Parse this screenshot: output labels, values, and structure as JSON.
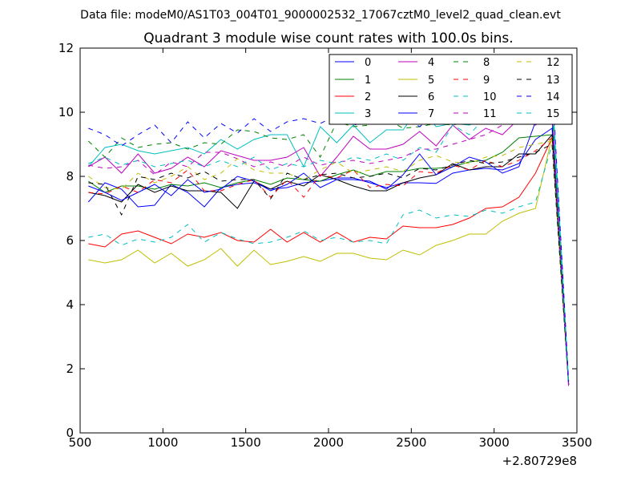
{
  "chart_data": {
    "type": "line",
    "suptitle": "Data file: modeM0/AS1T03_004T01_9000002532_17067cztM0_level2_quad_clean.evt",
    "title": "Quadrant 3 module wise count rates with 100.0s bins.",
    "xlabel": "",
    "ylabel": "",
    "x_offset_label": "+2.80729e8",
    "xlim": [
      500,
      3500
    ],
    "ylim": [
      0,
      12
    ],
    "xticks": [
      500,
      1000,
      1500,
      2000,
      2500,
      3000,
      3500
    ],
    "yticks": [
      0,
      2,
      4,
      6,
      8,
      10,
      12
    ],
    "grid": false,
    "legend_position": "top-right",
    "x": [
      550,
      650,
      750,
      850,
      950,
      1050,
      1150,
      1250,
      1350,
      1450,
      1550,
      1650,
      1750,
      1850,
      1950,
      2050,
      2150,
      2250,
      2350,
      2450,
      2550,
      2650,
      2750,
      2850,
      2950,
      3050,
      3150,
      3250,
      3350,
      3450
    ],
    "series": [
      {
        "name": "0",
        "color": "#0000ff",
        "dash": "solid",
        "values": [
          7.2,
          7.8,
          7.6,
          7.05,
          7.1,
          7.75,
          7.5,
          7.05,
          7.65,
          7.75,
          7.8,
          7.6,
          7.65,
          7.8,
          7.85,
          7.95,
          7.95,
          7.8,
          7.65,
          7.8,
          7.8,
          7.78,
          8.1,
          8.2,
          8.25,
          8.2,
          8.4,
          9.15,
          9.5,
          1.5
        ]
      },
      {
        "name": "1",
        "color": "#008000",
        "dash": "solid",
        "values": [
          7.85,
          7.5,
          7.7,
          7.7,
          7.6,
          7.75,
          7.7,
          7.8,
          7.65,
          7.8,
          7.9,
          7.75,
          7.95,
          7.9,
          7.85,
          8.05,
          8.2,
          8.0,
          8.15,
          8.15,
          8.25,
          8.25,
          8.3,
          8.45,
          8.5,
          8.75,
          9.2,
          9.25,
          9.3,
          1.5
        ]
      },
      {
        "name": "2",
        "color": "#ff0000",
        "dash": "solid",
        "values": [
          5.9,
          5.8,
          6.2,
          6.3,
          6.1,
          5.9,
          6.2,
          6.1,
          6.25,
          6.0,
          5.95,
          6.35,
          5.95,
          6.25,
          5.95,
          6.25,
          5.95,
          6.1,
          6.05,
          6.45,
          6.4,
          6.4,
          6.5,
          6.7,
          7.0,
          7.05,
          7.35,
          8.1,
          9.2,
          1.5
        ]
      },
      {
        "name": "3",
        "color": "#00bfbf",
        "dash": "solid",
        "values": [
          8.3,
          8.9,
          9.0,
          8.8,
          8.7,
          8.8,
          8.9,
          8.7,
          9.15,
          8.85,
          9.15,
          9.3,
          9.3,
          8.3,
          9.55,
          9.05,
          9.6,
          9.05,
          9.45,
          9.45,
          10.15,
          9.55,
          9.65,
          9.6,
          9.8,
          10.05,
          10.3,
          10.6,
          10.8,
          1.6
        ]
      },
      {
        "name": "4",
        "color": "#bf00bf",
        "dash": "solid",
        "values": [
          8.3,
          8.6,
          8.1,
          8.7,
          8.1,
          8.25,
          8.6,
          8.3,
          8.8,
          8.65,
          8.5,
          8.5,
          8.6,
          8.9,
          8.0,
          8.6,
          9.25,
          8.85,
          8.85,
          9.0,
          9.4,
          8.95,
          9.6,
          9.15,
          9.5,
          9.3,
          9.8,
          9.6,
          10.0,
          1.5
        ]
      },
      {
        "name": "5",
        "color": "#bfbf00",
        "dash": "solid",
        "values": [
          5.4,
          5.3,
          5.4,
          5.7,
          5.3,
          5.6,
          5.2,
          5.4,
          5.75,
          5.2,
          5.7,
          5.25,
          5.35,
          5.5,
          5.35,
          5.6,
          5.6,
          5.45,
          5.4,
          5.7,
          5.55,
          5.85,
          6.0,
          6.2,
          6.2,
          6.6,
          6.85,
          7.0,
          9.25,
          1.5
        ]
      },
      {
        "name": "6",
        "color": "#000000",
        "dash": "solid",
        "values": [
          7.5,
          7.4,
          7.2,
          7.75,
          7.5,
          7.7,
          7.55,
          7.55,
          7.5,
          7.0,
          7.85,
          7.6,
          7.85,
          7.7,
          8.05,
          7.9,
          7.7,
          7.55,
          7.55,
          7.8,
          7.95,
          8.05,
          8.4,
          8.2,
          8.3,
          8.3,
          8.7,
          8.7,
          9.3,
          1.5
        ]
      },
      {
        "name": "7",
        "color": "#0000ff",
        "dash": "solid",
        "values": [
          7.7,
          7.5,
          7.25,
          7.5,
          7.75,
          7.4,
          7.9,
          7.5,
          7.6,
          8.0,
          7.85,
          7.55,
          7.75,
          8.1,
          7.65,
          7.9,
          7.9,
          7.85,
          7.6,
          8.05,
          8.7,
          8.05,
          8.3,
          8.6,
          8.45,
          8.1,
          8.3,
          9.7,
          9.8,
          1.5
        ]
      },
      {
        "name": "8",
        "color": "#008000",
        "dash": "dashed",
        "values": [
          9.1,
          8.6,
          9.2,
          8.9,
          9.0,
          9.05,
          8.85,
          9.05,
          9.0,
          9.45,
          9.4,
          9.2,
          9.15,
          9.3,
          8.6,
          9.7,
          9.55,
          9.6,
          9.8,
          9.5,
          9.55,
          9.65,
          9.6,
          9.7,
          9.8,
          9.85,
          9.95,
          10.0,
          10.05,
          1.5
        ]
      },
      {
        "name": "9",
        "color": "#ff0000",
        "dash": "dashed",
        "values": [
          7.5,
          7.45,
          7.7,
          7.5,
          7.9,
          7.8,
          8.2,
          7.55,
          7.55,
          7.75,
          7.9,
          7.35,
          7.9,
          7.35,
          8.05,
          7.95,
          8.2,
          7.65,
          7.75,
          7.7,
          8.15,
          8.1,
          8.35,
          8.2,
          8.5,
          8.3,
          8.5,
          8.8,
          9.2,
          1.5
        ]
      },
      {
        "name": "10",
        "color": "#00bfbf",
        "dash": "dashed",
        "values": [
          6.1,
          6.2,
          5.85,
          6.05,
          5.95,
          6.1,
          6.5,
          5.95,
          6.25,
          6.05,
          5.9,
          5.95,
          6.1,
          6.3,
          6.0,
          6.1,
          5.95,
          6.0,
          5.9,
          6.8,
          6.95,
          6.7,
          6.8,
          6.75,
          6.95,
          6.85,
          7.05,
          7.2,
          9.0,
          1.5
        ]
      },
      {
        "name": "11",
        "color": "#bf00bf",
        "dash": "dashed",
        "values": [
          8.35,
          8.25,
          8.3,
          8.5,
          8.05,
          8.45,
          8.3,
          8.75,
          8.75,
          8.55,
          8.3,
          8.45,
          8.3,
          8.6,
          8.35,
          8.45,
          8.5,
          8.4,
          8.5,
          8.6,
          8.85,
          8.85,
          9.0,
          9.15,
          9.3,
          9.6,
          9.85,
          9.9,
          10.0,
          1.4
        ]
      },
      {
        "name": "12",
        "color": "#bfbf00",
        "dash": "dashed",
        "values": [
          8.0,
          7.65,
          7.6,
          8.1,
          7.8,
          8.0,
          8.3,
          7.9,
          8.1,
          8.55,
          8.2,
          8.1,
          8.1,
          7.9,
          8.2,
          8.45,
          8.1,
          8.2,
          8.3,
          8.15,
          8.5,
          8.65,
          8.45,
          8.4,
          8.6,
          8.65,
          8.9,
          9.0,
          9.1,
          1.5
        ]
      },
      {
        "name": "13",
        "color": "#000000",
        "dash": "dashed",
        "values": [
          7.8,
          7.75,
          6.8,
          8.0,
          7.9,
          8.1,
          7.95,
          8.15,
          7.85,
          7.9,
          7.9,
          7.3,
          8.1,
          7.9,
          8.05,
          8.1,
          7.95,
          8.0,
          8.1,
          7.95,
          8.25,
          8.2,
          8.35,
          8.5,
          8.4,
          8.45,
          8.6,
          8.75,
          9.0,
          1.5
        ]
      },
      {
        "name": "14",
        "color": "#0000ff",
        "dash": "dashed",
        "values": [
          9.5,
          9.3,
          8.95,
          9.3,
          9.6,
          9.05,
          9.7,
          9.2,
          9.65,
          9.35,
          9.8,
          9.4,
          9.7,
          9.8,
          9.65,
          9.9,
          9.6,
          9.7,
          9.75,
          9.9,
          9.55,
          9.95,
          9.7,
          9.85,
          9.9,
          9.95,
          9.8,
          10.1,
          11.0,
          1.6
        ]
      },
      {
        "name": "15",
        "color": "#00bfbf",
        "dash": "dashed",
        "values": [
          8.4,
          8.6,
          8.35,
          8.5,
          8.3,
          8.4,
          8.5,
          8.3,
          8.5,
          8.3,
          8.6,
          8.2,
          8.4,
          8.3,
          8.5,
          8.4,
          8.6,
          8.5,
          8.7,
          8.5,
          8.9,
          8.75,
          9.6,
          9.3,
          9.85,
          10.0,
          10.2,
          10.5,
          10.4,
          1.5
        ]
      }
    ]
  }
}
